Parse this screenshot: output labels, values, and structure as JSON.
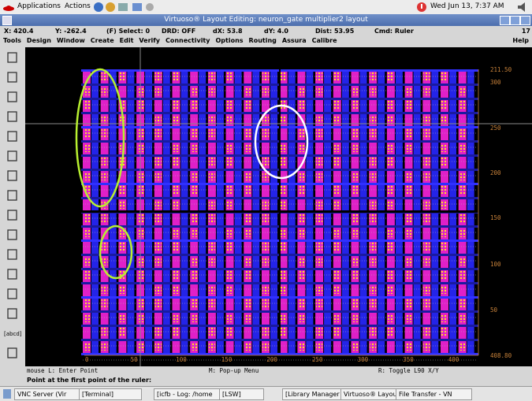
{
  "panel": {
    "menus": [
      "Applications",
      "Actions"
    ],
    "clock": "Wed Jun 13,  7:37 AM"
  },
  "window": {
    "title": "Virtuoso® Layout Editing: neuron_gate multiplier2 layout"
  },
  "status": [
    "X: 420.4",
    "Y: -262.4",
    "(F) Select: 0",
    "DRD: OFF",
    "dX: 53.8",
    "dY: 4.0",
    "Dist: 53.95",
    "Cmd: Ruler",
    "17"
  ],
  "menu": [
    "Tools",
    "Design",
    "Window",
    "Create",
    "Edit",
    "Verify",
    "Connectivity",
    "Options",
    "Routing",
    "Assura",
    "Calibre"
  ],
  "help": "Help",
  "toolbar": {
    "text_icon": "[abcd]"
  },
  "ruler": {
    "right": [
      "211.50",
      "300",
      "250",
      "200",
      "150",
      "100",
      "50",
      "408.80"
    ],
    "bottom": [
      "0",
      "50",
      "100",
      "150",
      "200",
      "250",
      "300",
      "350",
      "400"
    ]
  },
  "mouse": {
    "left": "mouse L: Enter Point",
    "middle": "M: Pop-up Menu",
    "right": "R: Toggle L90 X/Y"
  },
  "prompt": "Point at the first point of the ruler:",
  "taskbar": [
    "VNC Server (Vir",
    "[Terminal]",
    "[icfb - Log: /home",
    "[LSW]",
    "[Library Manager",
    "Virtuoso® Layou",
    "File Transfer - VN"
  ]
}
